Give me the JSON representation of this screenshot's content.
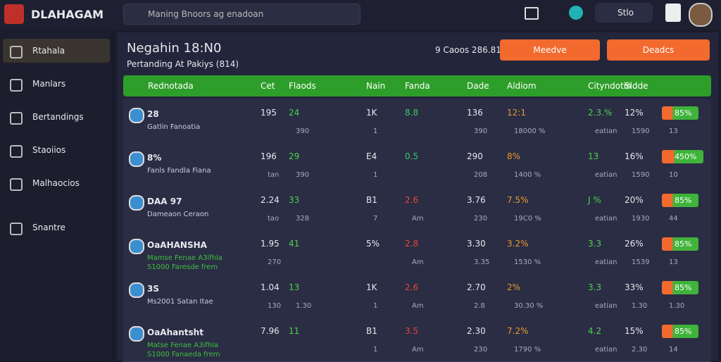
{
  "topbar": {
    "logo": "DLAHAGAM",
    "search": "Mаning Bnoors ag enadoan",
    "menu": "Stlo"
  },
  "sidebar": [
    "Rtahala",
    "Manlars",
    "Bertandings",
    "Staoiios",
    "Malhaocios",
    "Snantre"
  ],
  "header": {
    "title": "Negahin 18:N0",
    "subtitle": "Pertanding At Pakiys (814)",
    "info": "9 Caoos 286.81",
    "button1": "Meedve",
    "button2": "Deadcs"
  },
  "table": {
    "columns": [
      "Rednotada",
      "Cet",
      "Flaods",
      "Nain",
      "Fanda",
      "Dade",
      "Aldiom",
      "Cityndotin",
      "Sldde"
    ],
    "rows": [
      {
        "name": "28",
        "subs": [
          "Gatlin Fanoatia"
        ],
        "cells": [
          [
            "195",
            ""
          ],
          [
            "24",
            "390"
          ],
          [
            "1K",
            "1"
          ],
          [
            "8.8",
            ""
          ],
          [
            "136",
            "390"
          ],
          [
            "12:1",
            "18000 %"
          ],
          [
            "2.3.%",
            "eatian"
          ],
          [
            "12%",
            "1590"
          ],
          [
            "85%",
            "13"
          ]
        ]
      },
      {
        "name": "8%",
        "subs": [
          "Fanls Fandla Fiana"
        ],
        "cells": [
          [
            "196",
            "tan"
          ],
          [
            "29",
            "390"
          ],
          [
            "E4",
            "1"
          ],
          [
            "0.5",
            ""
          ],
          [
            "290",
            "208"
          ],
          [
            "8%",
            "1400 %"
          ],
          [
            "13",
            "eatian"
          ],
          [
            "16%",
            "1590"
          ],
          [
            "450%",
            "10"
          ]
        ]
      },
      {
        "name": "DAA 97",
        "subs": [
          "Dameaon Ceraon"
        ],
        "cells": [
          [
            "2.24",
            "tao"
          ],
          [
            "33",
            "328"
          ],
          [
            "B1",
            "7"
          ],
          [
            "2.6",
            "Am"
          ],
          [
            "3.76",
            "230"
          ],
          [
            "7.5%",
            "19C0 %"
          ],
          [
            "J %",
            "eatian"
          ],
          [
            "20%",
            "1930"
          ],
          [
            "85%",
            "44"
          ]
        ]
      },
      {
        "name": "OaAHANSHA",
        "subs": [
          "Mamse Fenae A3ifhla",
          "S1000 Faresde frem"
        ],
        "cells": [
          [
            "1.95",
            "270"
          ],
          [
            "41",
            ""
          ],
          [
            "5%",
            ""
          ],
          [
            "2.8",
            "Am"
          ],
          [
            "3.30",
            "3.35"
          ],
          [
            "3.2%",
            "1530 %"
          ],
          [
            "3.3",
            "eatian"
          ],
          [
            "26%",
            "1539"
          ],
          [
            "85%",
            "13"
          ]
        ]
      },
      {
        "name": "3S",
        "subs": [
          "Ms2001 Satan Itae"
        ],
        "cells": [
          [
            "1.04",
            "130"
          ],
          [
            "13",
            "1.30"
          ],
          [
            "1K",
            "1"
          ],
          [
            "2.6",
            "Am"
          ],
          [
            "2.70",
            "2.8"
          ],
          [
            "2%",
            "30.30 %"
          ],
          [
            "3.3",
            "eatian"
          ],
          [
            "33%",
            "1.30"
          ],
          [
            "85%",
            "1.30"
          ]
        ]
      },
      {
        "name": "OaAhantsht",
        "subs": [
          "Matse Fenae A3ifhla",
          "S1000 Fanaeda frem"
        ],
        "cells": [
          [
            "7.96",
            ""
          ],
          [
            "11",
            ""
          ],
          [
            "B1",
            "1"
          ],
          [
            "3.5",
            "Am"
          ],
          [
            "2.30",
            "230"
          ],
          [
            "7.2%",
            "1790 %"
          ],
          [
            "4.2",
            "eatian"
          ],
          [
            "15%",
            "2.30"
          ],
          [
            "85%",
            "14"
          ]
        ]
      }
    ]
  }
}
